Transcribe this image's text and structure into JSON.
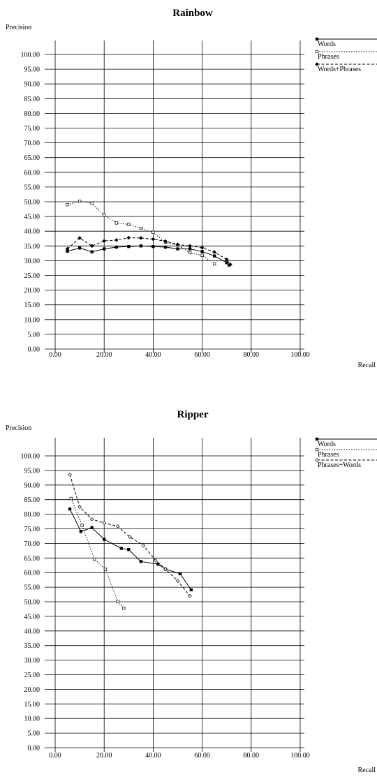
{
  "chart_data": [
    {
      "type": "line",
      "title": "Rainbow",
      "xlabel": "Recall",
      "ylabel": "Precision",
      "xlim": [
        0,
        100
      ],
      "ylim": [
        0,
        100
      ],
      "xticks": [
        "0.00",
        "20.00",
        "40.00",
        "60.00",
        "80.00",
        "100.00"
      ],
      "yticks": [
        "0.00",
        "5.00",
        "10.00",
        "15.00",
        "20.00",
        "25.00",
        "30.00",
        "35.00",
        "40.00",
        "45.00",
        "50.00",
        "55.00",
        "60.00",
        "65.00",
        "70.00",
        "75.00",
        "80.00",
        "85.00",
        "90.00",
        "95.00",
        "100.00"
      ],
      "grid": true,
      "legend_position": "top-right",
      "series": [
        {
          "name": "Words",
          "style": "solid",
          "marker": "filled-square",
          "points": [
            [
              5,
              33.2
            ],
            [
              10,
              34.3
            ],
            [
              15,
              33.0
            ],
            [
              20,
              34.0
            ],
            [
              25,
              34.6
            ],
            [
              30,
              34.8
            ],
            [
              35,
              35.0
            ],
            [
              40,
              34.8
            ],
            [
              45,
              34.6
            ],
            [
              50,
              34.0
            ],
            [
              55,
              34.0
            ],
            [
              60,
              33.1
            ],
            [
              65,
              31.6
            ],
            [
              70,
              29.3
            ],
            [
              71,
              28.5
            ]
          ]
        },
        {
          "name": "Phrases",
          "style": "dotted",
          "marker": "hollow-square",
          "points": [
            [
              5,
              49.0
            ],
            [
              10,
              50.2
            ],
            [
              15,
              49.5
            ],
            [
              20,
              45.4
            ],
            [
              25,
              42.8
            ],
            [
              30,
              42.3
            ],
            [
              35,
              41.0
            ],
            [
              40,
              39.6
            ],
            [
              45,
              36.3
            ],
            [
              50,
              35.3
            ],
            [
              55,
              32.7
            ],
            [
              60,
              31.8
            ],
            [
              65,
              28.9
            ]
          ]
        },
        {
          "name": "Words+Phrases",
          "style": "dashed",
          "marker": "filled-diamond",
          "points": [
            [
              5,
              34.0
            ],
            [
              10,
              37.7
            ],
            [
              15,
              35.0
            ],
            [
              20,
              36.7
            ],
            [
              25,
              37.0
            ],
            [
              30,
              37.8
            ],
            [
              35,
              37.7
            ],
            [
              40,
              37.3
            ],
            [
              45,
              36.6
            ],
            [
              50,
              35.5
            ],
            [
              55,
              35.0
            ],
            [
              60,
              34.4
            ],
            [
              65,
              32.9
            ],
            [
              70,
              30.4
            ],
            [
              71.5,
              28.7
            ]
          ]
        }
      ]
    },
    {
      "type": "line",
      "title": "Ripper",
      "xlabel": "Recall",
      "ylabel": "Precision",
      "xlim": [
        0,
        100
      ],
      "ylim": [
        0,
        100
      ],
      "xticks": [
        "0.00",
        "20.00",
        "40.00",
        "60.00",
        "80.00",
        "100.00"
      ],
      "yticks": [
        "0.00",
        "5.00",
        "10.00",
        "15.00",
        "20.00",
        "25.00",
        "30.00",
        "35.00",
        "40.00",
        "45.00",
        "50.00",
        "55.00",
        "60.00",
        "65.00",
        "70.00",
        "75.00",
        "80.00",
        "85.00",
        "90.00",
        "95.00",
        "100.00"
      ],
      "grid": true,
      "legend_position": "top-right",
      "series": [
        {
          "name": "Words",
          "style": "solid",
          "marker": "filled-square",
          "points": [
            [
              6,
              81.8
            ],
            [
              10.5,
              74.1
            ],
            [
              15,
              75.4
            ],
            [
              20,
              71.4
            ],
            [
              27,
              68.3
            ],
            [
              30,
              67.9
            ],
            [
              35,
              63.8
            ],
            [
              42,
              62.9
            ],
            [
              45,
              61.2
            ],
            [
              51,
              59.6
            ],
            [
              55.5,
              54.1
            ]
          ]
        },
        {
          "name": "Phrases",
          "style": "dotted",
          "marker": "hollow-square",
          "points": [
            [
              6.5,
              85.4
            ],
            [
              11,
              76.2
            ],
            [
              16,
              64.6
            ],
            [
              20.5,
              61.1
            ],
            [
              25.5,
              50.1
            ],
            [
              28,
              47.8
            ]
          ]
        },
        {
          "name": "Phrases+Words",
          "style": "dashed",
          "marker": "hollow-diamond",
          "points": [
            [
              6,
              93.6
            ],
            [
              10,
              82.5
            ],
            [
              15,
              78.3
            ],
            [
              20,
              77.0
            ],
            [
              25.5,
              75.9
            ],
            [
              30.5,
              72.2
            ],
            [
              36,
              69.3
            ],
            [
              41,
              64.2
            ],
            [
              45,
              61.2
            ],
            [
              50,
              57.2
            ],
            [
              55,
              52.0
            ]
          ]
        }
      ]
    }
  ]
}
